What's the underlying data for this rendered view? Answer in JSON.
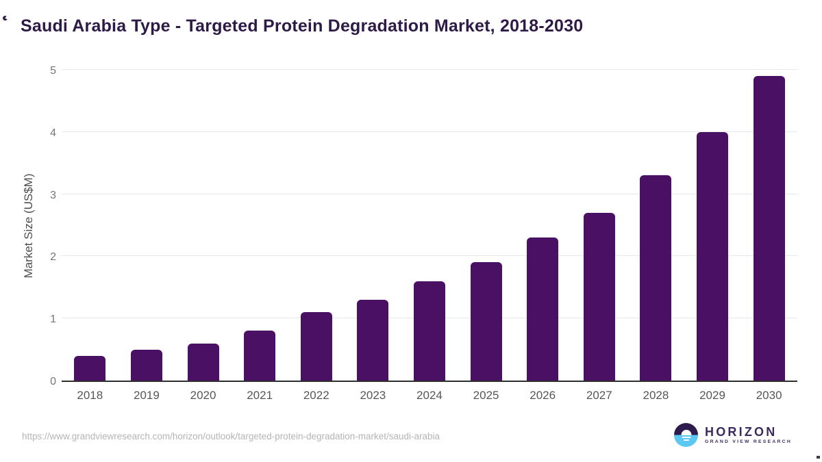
{
  "header": {
    "title": "Saudi Arabia Type - Targeted Protein Degradation Market, 2018-2030"
  },
  "chart_data": {
    "type": "bar",
    "title": "Saudi Arabia Type - Targeted Protein Degradation Market, 2018-2030",
    "categories": [
      "2018",
      "2019",
      "2020",
      "2021",
      "2022",
      "2023",
      "2024",
      "2025",
      "2026",
      "2027",
      "2028",
      "2029",
      "2030"
    ],
    "values": [
      0.4,
      0.5,
      0.6,
      0.8,
      1.1,
      1.3,
      1.6,
      1.9,
      2.3,
      2.7,
      3.3,
      4.0,
      4.9
    ],
    "xlabel": "",
    "ylabel": "Market Size (US$M)",
    "ylim": [
      0,
      5
    ],
    "yticks": [
      0,
      1,
      2,
      3,
      4,
      5
    ],
    "grid": "horizontal",
    "legend": "none",
    "bar_color": "#4a1063"
  },
  "footer": {
    "source_url": "https://www.grandviewresearch.com/horizon/outlook/targeted-protein-degradation-market/saudi-arabia",
    "logo": {
      "brand_name": "HORIZON",
      "tagline": "GRAND VIEW RESEARCH",
      "icon": "horizon-sun-circle-icon",
      "color_dark": "#2e1b4e",
      "color_blue": "#5bc7f3"
    }
  },
  "colors": {
    "title_text": "#2e1a47",
    "bar": "#4a1063",
    "axis_line": "#2e2e2e",
    "gridline": "#e7e7e7",
    "y_tick_text": "#757575",
    "x_tick_text": "#565656",
    "url_text": "#b4b4b4"
  }
}
